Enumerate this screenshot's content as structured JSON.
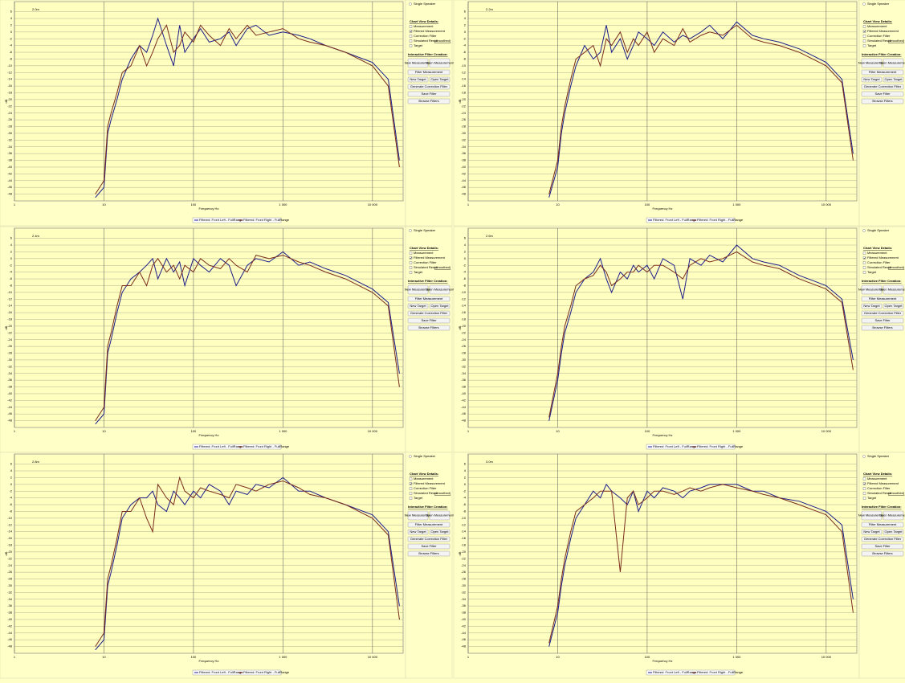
{
  "ui": {
    "radio": "Single Speaker",
    "view_title": "Chart View Details:",
    "checks": [
      {
        "label": "Measurement",
        "checked": false
      },
      {
        "label": "Filtered Measurement",
        "checked": true
      },
      {
        "label": "Correction Filter",
        "checked": false
      },
      {
        "label": "Simulated Result",
        "checked": false
      },
      {
        "label": "Target",
        "checked": false
      }
    ],
    "smoothed": "(smoothed)",
    "filter_title": "Interactive Filter Creation:",
    "buttons": [
      "New Measurement",
      "Open Measurement",
      "Filter Measurement",
      "New Target",
      "Open Target",
      "Generate Correction Filter",
      "Save Filter",
      "Browse Filters"
    ]
  },
  "chart_data": [
    {
      "type": "line",
      "title": "2.0m",
      "x_label": "Frequency Hz",
      "y_label": "dB",
      "log_x": true,
      "grid": true,
      "legend": "bottom",
      "xlim": [
        1,
        22000
      ],
      "ylim": [
        -50,
        9
      ],
      "xticks": [
        1,
        10,
        100,
        {
          "value": 1000,
          "label": "1 000"
        },
        {
          "value": 10000,
          "label": "10 000"
        }
      ],
      "yticks": [
        6,
        4,
        2,
        0,
        -2,
        -4,
        -6,
        -8,
        -10,
        -12,
        -14,
        -16,
        -18,
        -20,
        -22,
        -24,
        -26,
        -28,
        -30,
        -32,
        -34,
        -36,
        -38,
        -40,
        -42,
        -44,
        -46,
        -48
      ],
      "x": [
        8,
        10,
        11,
        12,
        14,
        16,
        20,
        25,
        30,
        35,
        40,
        50,
        60,
        70,
        80,
        100,
        120,
        150,
        200,
        250,
        300,
        400,
        500,
        700,
        1000,
        1500,
        2000,
        3000,
        5000,
        10000,
        15000,
        20000
      ],
      "series": [
        {
          "name": "Filtered: Front Left - FullRange",
          "color": "#1c1c8a",
          "values": [
            -49,
            -46,
            -30,
            -26,
            -20,
            -14,
            -8,
            -4,
            -6,
            -1,
            4,
            -4,
            -10,
            2,
            -6,
            -2,
            1,
            -3,
            -2,
            0,
            -4,
            1,
            2,
            -1,
            0,
            -1,
            -2,
            -4,
            -6,
            -9,
            -14,
            -38
          ]
        },
        {
          "name": "Filtered: Front Right - FullRange",
          "color": "#7a2c1c",
          "values": [
            -48,
            -44,
            -28,
            -24,
            -18,
            -12,
            -10,
            -4,
            -10,
            -6,
            -2,
            2,
            -6,
            -4,
            0,
            -3,
            2,
            -1,
            -4,
            1,
            -2,
            2,
            -1,
            0,
            1,
            -2,
            -3,
            -4,
            -6,
            -10,
            -16,
            -40
          ]
        }
      ]
    },
    {
      "type": "line",
      "title": "2.2m",
      "x_label": "Frequency Hz",
      "y_label": "dB",
      "log_x": true,
      "grid": true,
      "legend": "bottom",
      "xlim": [
        1,
        22000
      ],
      "ylim": [
        -50,
        9
      ],
      "xticks": [
        1,
        10,
        100,
        {
          "value": 1000,
          "label": "1 000"
        },
        {
          "value": 10000,
          "label": "10 000"
        }
      ],
      "yticks": [
        6,
        4,
        2,
        0,
        -2,
        -4,
        -6,
        -8,
        -10,
        -12,
        -14,
        -16,
        -18,
        -20,
        -22,
        -24,
        -26,
        -28,
        -30,
        -32,
        -34,
        -36,
        -38,
        -40,
        -42,
        -44,
        -46,
        -48
      ],
      "x": [
        8,
        10,
        11,
        12,
        14,
        16,
        20,
        25,
        30,
        35,
        40,
        50,
        60,
        70,
        80,
        100,
        120,
        150,
        200,
        250,
        300,
        400,
        500,
        700,
        1000,
        1500,
        2000,
        3000,
        5000,
        10000,
        15000,
        20000
      ],
      "series": [
        {
          "name": "Filtered: Front Left - FullRange",
          "color": "#1c1c8a",
          "values": [
            -49,
            -40,
            -30,
            -24,
            -16,
            -10,
            -4,
            -8,
            -6,
            2,
            -6,
            -2,
            -8,
            -4,
            0,
            -2,
            -4,
            0,
            -3,
            -1,
            -2,
            0,
            2,
            -2,
            3,
            -1,
            -2,
            -3,
            -5,
            -9,
            -14,
            -36
          ]
        },
        {
          "name": "Filtered: Front Right - FullRange",
          "color": "#7a2c1c",
          "values": [
            -48,
            -38,
            -28,
            -22,
            -14,
            -8,
            -6,
            -4,
            -10,
            -2,
            -4,
            0,
            -6,
            -2,
            -4,
            0,
            -6,
            -2,
            -4,
            1,
            -3,
            -1,
            0,
            -1,
            2,
            -2,
            -3,
            -4,
            -6,
            -10,
            -15,
            -38
          ]
        }
      ]
    },
    {
      "type": "line",
      "title": "2.4m",
      "x_label": "Frequency Hz",
      "y_label": "dB",
      "log_x": true,
      "grid": true,
      "legend": "bottom",
      "xlim": [
        1,
        22000
      ],
      "ylim": [
        -50,
        9
      ],
      "xticks": [
        1,
        10,
        100,
        {
          "value": 1000,
          "label": "1 000"
        },
        {
          "value": 10000,
          "label": "10 000"
        }
      ],
      "yticks": [
        6,
        4,
        2,
        0,
        -2,
        -4,
        -6,
        -8,
        -10,
        -12,
        -14,
        -16,
        -18,
        -20,
        -22,
        -24,
        -26,
        -28,
        -30,
        -32,
        -34,
        -36,
        -38,
        -40,
        -42,
        -44,
        -46,
        -48
      ],
      "x": [
        8,
        10,
        11,
        12,
        14,
        16,
        20,
        25,
        30,
        35,
        40,
        50,
        60,
        70,
        80,
        100,
        120,
        150,
        200,
        250,
        300,
        400,
        500,
        700,
        1000,
        1500,
        2000,
        3000,
        5000,
        10000,
        15000,
        20000
      ],
      "series": [
        {
          "name": "Filtered: Front Left - FullRange",
          "color": "#1c1c8a",
          "values": [
            -49,
            -46,
            -28,
            -24,
            -16,
            -10,
            -6,
            -4,
            -2,
            0,
            -6,
            0,
            -4,
            -1,
            -8,
            0,
            -2,
            -4,
            0,
            -2,
            -8,
            -2,
            0,
            -1,
            2,
            -2,
            -1,
            -3,
            -5,
            -9,
            -13,
            -34
          ]
        },
        {
          "name": "Filtered: Front Right - FullRange",
          "color": "#7a2c1c",
          "values": [
            -48,
            -44,
            -26,
            -22,
            -14,
            -8,
            -8,
            -4,
            -8,
            -2,
            0,
            -4,
            -2,
            -6,
            -2,
            -4,
            0,
            -2,
            -3,
            0,
            -2,
            -4,
            1,
            0,
            1,
            -1,
            -2,
            -4,
            -6,
            -10,
            -14,
            -38
          ]
        }
      ]
    },
    {
      "type": "line",
      "title": "2.6m",
      "x_label": "Frequency Hz",
      "y_label": "dB",
      "log_x": true,
      "grid": true,
      "legend": "bottom",
      "xlim": [
        1,
        22000
      ],
      "ylim": [
        -50,
        9
      ],
      "xticks": [
        1,
        10,
        100,
        {
          "value": 1000,
          "label": "1 000"
        },
        {
          "value": 10000,
          "label": "10 000"
        }
      ],
      "yticks": [
        6,
        4,
        2,
        0,
        -2,
        -4,
        -6,
        -8,
        -10,
        -12,
        -14,
        -16,
        -18,
        -20,
        -22,
        -24,
        -26,
        -28,
        -30,
        -32,
        -34,
        -36,
        -38,
        -40,
        -42,
        -44,
        -46,
        -48
      ],
      "x": [
        8,
        10,
        11,
        12,
        14,
        16,
        20,
        25,
        30,
        35,
        40,
        50,
        60,
        70,
        80,
        100,
        120,
        150,
        200,
        250,
        300,
        400,
        500,
        700,
        1000,
        1500,
        2000,
        3000,
        5000,
        10000,
        15000,
        20000
      ],
      "series": [
        {
          "name": "Filtered: Front Left - FullRange",
          "color": "#1c1c8a",
          "values": [
            -48,
            -36,
            -28,
            -22,
            -16,
            -10,
            -6,
            -4,
            0,
            -6,
            -10,
            -4,
            -6,
            -2,
            -4,
            -2,
            -6,
            0,
            -2,
            -12,
            0,
            -2,
            1,
            -1,
            4,
            0,
            -1,
            -2,
            -5,
            -8,
            -12,
            -30
          ]
        },
        {
          "name": "Filtered: Front Right - FullRange",
          "color": "#7a2c1c",
          "values": [
            -47,
            -34,
            -26,
            -20,
            -14,
            -8,
            -6,
            -5,
            -2,
            -4,
            -8,
            -6,
            -4,
            -4,
            -2,
            -4,
            -2,
            -2,
            -4,
            -6,
            -2,
            0,
            -1,
            0,
            2,
            -1,
            -2,
            -3,
            -6,
            -9,
            -13,
            -33
          ]
        }
      ]
    },
    {
      "type": "line",
      "title": "2.8m",
      "x_label": "Frequency Hz",
      "y_label": "dB",
      "log_x": true,
      "grid": true,
      "legend": "bottom",
      "xlim": [
        1,
        22000
      ],
      "ylim": [
        -50,
        9
      ],
      "xticks": [
        1,
        10,
        100,
        {
          "value": 1000,
          "label": "1 000"
        },
        {
          "value": 10000,
          "label": "10 000"
        }
      ],
      "yticks": [
        6,
        4,
        2,
        0,
        -2,
        -4,
        -6,
        -8,
        -10,
        -12,
        -14,
        -16,
        -18,
        -20,
        -22,
        -24,
        -26,
        -28,
        -30,
        -32,
        -34,
        -36,
        -38,
        -40,
        -42,
        -44,
        -46,
        -48
      ],
      "x": [
        8,
        10,
        11,
        12,
        14,
        16,
        20,
        25,
        30,
        35,
        40,
        50,
        60,
        70,
        80,
        100,
        120,
        150,
        200,
        250,
        300,
        400,
        500,
        700,
        1000,
        1500,
        2000,
        3000,
        5000,
        10000,
        15000,
        20000
      ],
      "series": [
        {
          "name": "Filtered: Front Left - FullRange",
          "color": "#1c1c8a",
          "values": [
            -49,
            -46,
            -30,
            -26,
            -18,
            -10,
            -6,
            -4,
            -4,
            -2,
            -6,
            -8,
            -2,
            -4,
            -6,
            -2,
            -4,
            0,
            -2,
            -6,
            -2,
            -3,
            0,
            -1,
            2,
            -2,
            -2,
            -4,
            -6,
            -9,
            -14,
            -36
          ]
        },
        {
          "name": "Filtered: Front Right - FullRange",
          "color": "#7a2c1c",
          "values": [
            -48,
            -44,
            -28,
            -24,
            -16,
            -8,
            -8,
            -4,
            -10,
            -14,
            0,
            -4,
            -6,
            2,
            -2,
            -4,
            -1,
            -2,
            -3,
            -4,
            0,
            -1,
            -2,
            0,
            1,
            -1,
            -3,
            -4,
            -6,
            -10,
            -15,
            -40
          ]
        }
      ]
    },
    {
      "type": "line",
      "title": "3.0m",
      "x_label": "Frequency Hz",
      "y_label": "dB",
      "log_x": true,
      "grid": true,
      "legend": "bottom",
      "xlim": [
        1,
        22000
      ],
      "ylim": [
        -50,
        9
      ],
      "xticks": [
        1,
        10,
        100,
        {
          "value": 1000,
          "label": "1 000"
        },
        {
          "value": 10000,
          "label": "10 000"
        }
      ],
      "yticks": [
        6,
        4,
        2,
        0,
        -2,
        -4,
        -6,
        -8,
        -10,
        -12,
        -14,
        -16,
        -18,
        -20,
        -22,
        -24,
        -26,
        -28,
        -30,
        -32,
        -34,
        -36,
        -38,
        -40,
        -42,
        -44,
        -46,
        -48
      ],
      "x": [
        8,
        10,
        11,
        12,
        14,
        16,
        20,
        25,
        30,
        35,
        40,
        50,
        60,
        70,
        80,
        100,
        120,
        150,
        200,
        250,
        300,
        400,
        500,
        700,
        1000,
        1500,
        2000,
        3000,
        5000,
        10000,
        15000,
        20000
      ],
      "series": [
        {
          "name": "Filtered: Front Left - FullRange",
          "color": "#1c1c8a",
          "values": [
            -48,
            -38,
            -30,
            -24,
            -16,
            -10,
            -6,
            -2,
            -4,
            0,
            -2,
            -4,
            -6,
            -2,
            -8,
            -2,
            -4,
            -1,
            -2,
            -4,
            -2,
            -1,
            0,
            0,
            0,
            -2,
            -2,
            -4,
            -5,
            -8,
            -12,
            -34
          ]
        },
        {
          "name": "Filtered: Front Right - FullRange",
          "color": "#7a2c1c",
          "values": [
            -47,
            -36,
            -28,
            -22,
            -14,
            -8,
            -6,
            -4,
            -2,
            -2,
            -2,
            -26,
            -4,
            -2,
            -6,
            -4,
            -2,
            -2,
            -3,
            -2,
            -1,
            -2,
            -1,
            0,
            -1,
            -2,
            -3,
            -4,
            -6,
            -9,
            -14,
            -38
          ]
        }
      ]
    }
  ]
}
